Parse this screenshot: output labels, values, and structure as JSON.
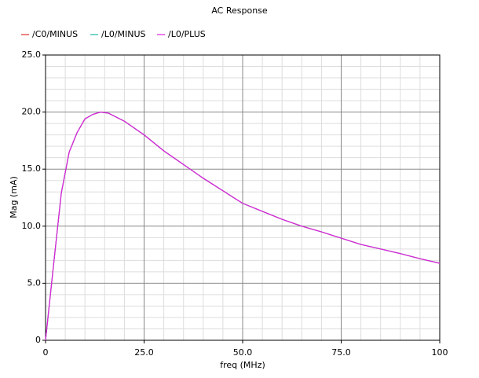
{
  "chart_data": {
    "type": "line",
    "title": "AC Response",
    "x_label": "freq (MHz)",
    "y_label": "Mag (mA)",
    "x": [
      0,
      2,
      4,
      6,
      8,
      10,
      12,
      14,
      16,
      20,
      25,
      30,
      35,
      40,
      45,
      50,
      55,
      60,
      65,
      70,
      75,
      80,
      85,
      90,
      95,
      100
    ],
    "series": [
      {
        "name": "/C0/MINUS",
        "color": "#e0302a",
        "values": [
          0,
          6.5,
          12.9,
          16.5,
          18.2,
          19.4,
          19.8,
          20.0,
          19.9,
          19.2,
          18.0,
          16.6,
          15.4,
          14.2,
          13.1,
          12.0,
          11.3,
          10.6,
          10.0,
          9.5,
          8.95,
          8.4,
          8.0,
          7.6,
          7.15,
          6.75
        ]
      },
      {
        "name": "/L0/MINUS",
        "color": "#20b8a8",
        "values": [
          0,
          6.5,
          12.9,
          16.5,
          18.2,
          19.4,
          19.8,
          20.0,
          19.9,
          19.2,
          18.0,
          16.6,
          15.4,
          14.2,
          13.1,
          12.0,
          11.3,
          10.6,
          10.0,
          9.5,
          8.95,
          8.4,
          8.0,
          7.6,
          7.15,
          6.75
        ]
      },
      {
        "name": "/L0/PLUS",
        "color": "#e020e0",
        "values": [
          0,
          6.5,
          12.9,
          16.5,
          18.2,
          19.4,
          19.8,
          20.0,
          19.9,
          19.2,
          18.0,
          16.6,
          15.4,
          14.2,
          13.1,
          12.0,
          11.3,
          10.6,
          10.0,
          9.5,
          8.95,
          8.4,
          8.0,
          7.6,
          7.15,
          6.75
        ]
      }
    ],
    "xlim": [
      0,
      100
    ],
    "xticks": [
      0,
      {
        "value": 25,
        "label": "25.0"
      },
      {
        "value": 50,
        "label": "50.0"
      },
      {
        "value": 75,
        "label": "75.0"
      },
      100
    ],
    "ylim": [
      0,
      25
    ],
    "yticks": [
      0,
      {
        "value": 5,
        "label": "5.0"
      },
      {
        "value": 10,
        "label": "10.0"
      },
      {
        "value": 15,
        "label": "15.0"
      },
      {
        "value": 20,
        "label": "20.0"
      },
      {
        "value": 25,
        "label": "25.0"
      }
    ],
    "grid": true,
    "legend": "top-left"
  }
}
